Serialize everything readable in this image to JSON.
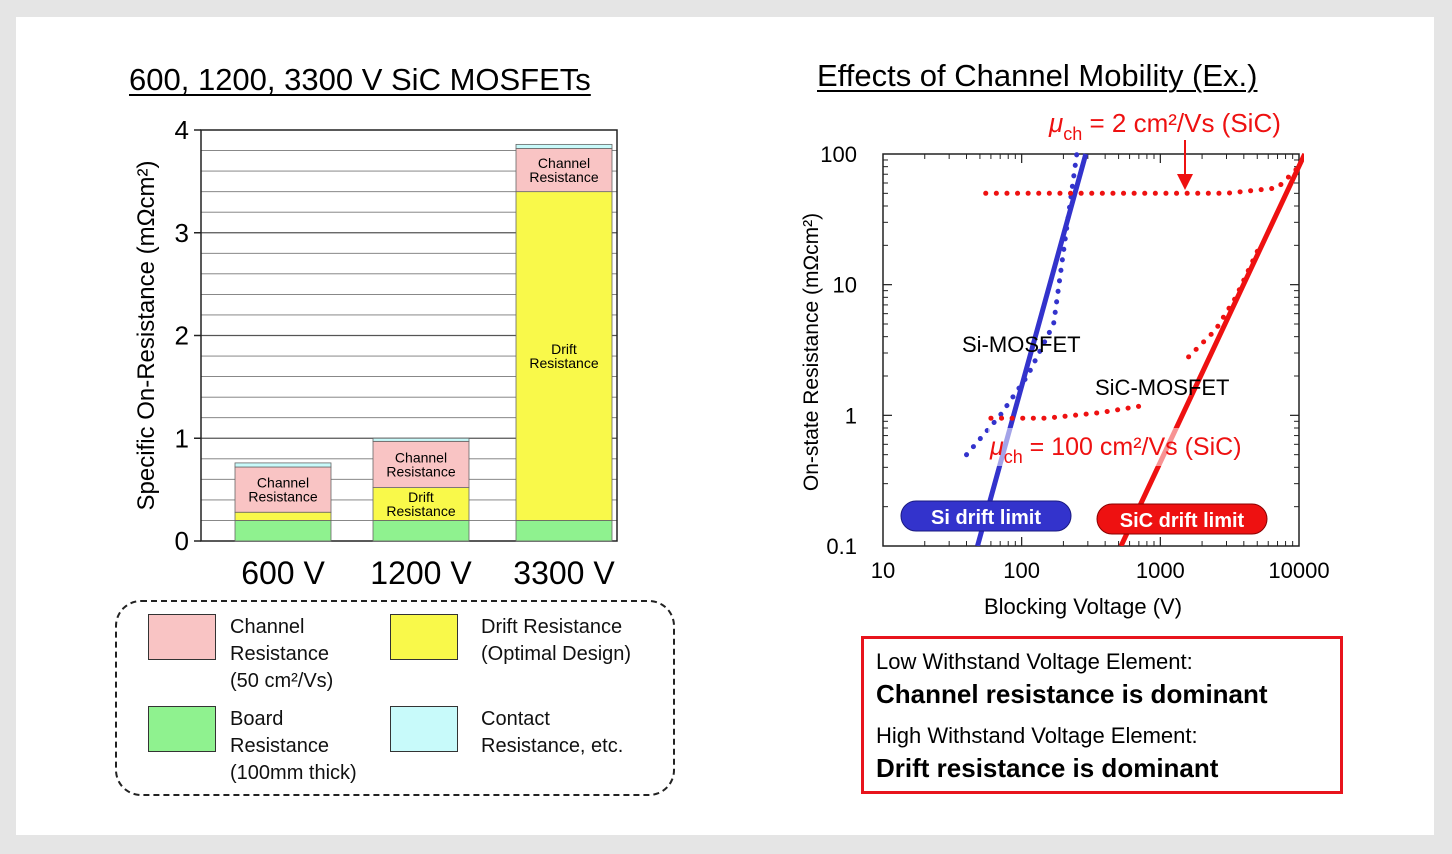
{
  "left_title": "600, 1200, 3300 V SiC MOSFETs",
  "right_title": "Effects of Channel Mobility (Ex.)",
  "chart_data": [
    {
      "type": "bar",
      "stacked": true,
      "ylabel": "Specific On-Resistance (mΩcm²)",
      "ylim": [
        0,
        4
      ],
      "yticks": [
        "0",
        "1",
        "2",
        "3",
        "4"
      ],
      "categories": [
        "600 V",
        "1200 V",
        "3300 V"
      ],
      "series": [
        {
          "key": "board",
          "name": "Board Resistance (100mm thick)",
          "color": "#8ff28f",
          "values": [
            0.2,
            0.2,
            0.2
          ]
        },
        {
          "key": "drift",
          "name": "Drift Resistance (Optimal Design)",
          "color": "#f9f94a",
          "values": [
            0.08,
            0.32,
            3.2
          ]
        },
        {
          "key": "channel",
          "name": "Channel Resistance (50 cm²/Vs)",
          "color": "#f9c4c4",
          "values": [
            0.44,
            0.45,
            0.42
          ]
        },
        {
          "key": "contact",
          "name": "Contact Resistance, etc.",
          "color": "#c8fafa",
          "values": [
            0.04,
            0.03,
            0.04
          ]
        }
      ],
      "grid": true,
      "bar_labels": [
        {
          "bar": 0,
          "series": "channel",
          "text": [
            "Channel",
            "Resistance"
          ]
        },
        {
          "bar": 1,
          "series": "channel",
          "text": [
            "Channel",
            "Resistance"
          ]
        },
        {
          "bar": 1,
          "series": "drift",
          "text": [
            "Drift",
            "Resistance"
          ]
        },
        {
          "bar": 2,
          "series": "channel",
          "text": [
            "Channel",
            "Resistance"
          ]
        },
        {
          "bar": 2,
          "series": "drift",
          "text": [
            "Drift",
            "Resistance"
          ]
        }
      ],
      "legend": [
        {
          "color": "#f9c4c4",
          "lines": [
            "Channel",
            "Resistance",
            "(50 cm²/Vs)"
          ]
        },
        {
          "color": "#f9f94a",
          "lines": [
            "Drift Resistance",
            "(Optimal Design)"
          ]
        },
        {
          "color": "#8ff28f",
          "lines": [
            "Board",
            "Resistance",
            "(100mm thick)"
          ]
        },
        {
          "color": "#c8fafa",
          "lines": [
            "Contact",
            "Resistance, etc."
          ]
        }
      ]
    },
    {
      "type": "line",
      "xlabel": "Blocking Voltage (V)",
      "ylabel": "On-state Resistance (mΩcm²)",
      "xscale": "log",
      "yscale": "log",
      "xlim": [
        10,
        10000
      ],
      "ylim": [
        0.1,
        100
      ],
      "xticks": [
        "10",
        "100",
        "1000",
        "10000"
      ],
      "yticks": [
        "0.1",
        "1",
        "10",
        "100"
      ],
      "series": [
        {
          "key": "si_limit",
          "style": "solid",
          "color": "#3333cc",
          "points": [
            [
              48,
              0.1
            ],
            [
              290,
              100
            ]
          ]
        },
        {
          "key": "si_mosfet",
          "style": "dotted",
          "color": "#3333cc",
          "points": [
            [
              40,
              0.5
            ],
            [
              70,
              1.0
            ],
            [
              110,
              2.0
            ],
            [
              170,
              5.0
            ],
            [
              250,
              100
            ]
          ]
        },
        {
          "key": "sic_limit",
          "style": "solid",
          "color": "#ee1111",
          "points": [
            [
              520,
              0.1
            ],
            [
              11000,
              100
            ]
          ]
        },
        {
          "key": "sic_mu100",
          "style": "dotted",
          "color": "#ee1111",
          "points": [
            [
              60,
              0.95
            ],
            [
              150,
              0.95
            ],
            [
              370,
              1.05
            ],
            [
              800,
              1.2
            ]
          ]
        },
        {
          "key": "sic_mu100_upper",
          "style": "dotted",
          "color": "#ee1111",
          "points": [
            [
              1600,
              2.8
            ],
            [
              2500,
              4.5
            ],
            [
              3500,
              8.0
            ],
            [
              5000,
              18.0
            ]
          ]
        },
        {
          "key": "sic_mu2",
          "style": "dotted",
          "color": "#ee1111",
          "points": [
            [
              55,
              50
            ],
            [
              500,
              50
            ],
            [
              3000,
              50
            ],
            [
              7000,
              55
            ],
            [
              10000,
              80
            ]
          ]
        }
      ],
      "annotations": {
        "si_mosfet": "Si-MOSFET",
        "sic_mosfet": "SiC-MOSFET",
        "mu2_prefix": "μ",
        "mu2_sub": "ch",
        "mu2_text": " = 2 cm²/Vs (SiC)",
        "mu100_prefix": "μ",
        "mu100_sub": "ch",
        "mu100_text": " = 100 cm²/Vs (SiC)",
        "si_drift_limit": "Si drift limit",
        "sic_drift_limit": "SiC drift limit"
      }
    }
  ],
  "notes": {
    "line1": "Low Withstand Voltage Element:",
    "line2": "Channel resistance is dominant",
    "line3": "High Withstand Voltage Element:",
    "line4": "Drift resistance is dominant"
  },
  "colors": {
    "blue": "#3333cc",
    "red": "#ee1111",
    "box_red": "#e8141c"
  }
}
